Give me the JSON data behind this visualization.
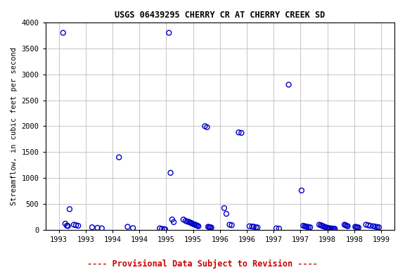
{
  "title": "USGS 06439295 CHERRY CR AT CHERRY CREEK SD",
  "ylabel": "Streamflow, in cubic feet per second",
  "xlim": [
    1992.75,
    1999.25
  ],
  "ylim": [
    0,
    4000
  ],
  "yticks": [
    0,
    500,
    1000,
    1500,
    2000,
    2500,
    3000,
    3500,
    4000
  ],
  "xticks": [
    1993,
    1993.5,
    1994,
    1994.5,
    1995,
    1995.5,
    1996,
    1996.5,
    1997,
    1997.5,
    1998,
    1998.5,
    1999
  ],
  "xticklabels": [
    "1993",
    "1993",
    "1994",
    "1994",
    "1995",
    "1995",
    "1996",
    "1996",
    "1997",
    "1997",
    "1998",
    "1998",
    "1999"
  ],
  "footnote": "---- Provisional Data Subject to Revision ----",
  "footnote_color": "#cc0000",
  "marker_color": "#0000cc",
  "background_color": "#ffffff",
  "grid_color": "#bbbbbb",
  "data_x": [
    1993.08,
    1993.12,
    1993.15,
    1993.17,
    1993.2,
    1993.28,
    1993.32,
    1993.36,
    1993.62,
    1993.72,
    1993.8,
    1994.12,
    1994.28,
    1994.38,
    1994.88,
    1994.92,
    1994.96,
    1994.98,
    1995.05,
    1995.08,
    1995.11,
    1995.14,
    1995.32,
    1995.36,
    1995.39,
    1995.42,
    1995.44,
    1995.46,
    1995.48,
    1995.5,
    1995.52,
    1995.54,
    1995.56,
    1995.58,
    1995.6,
    1995.72,
    1995.76,
    1995.78,
    1995.8,
    1995.82,
    1995.84,
    1996.08,
    1996.12,
    1996.18,
    1996.22,
    1996.35,
    1996.4,
    1996.55,
    1996.6,
    1996.63,
    1996.67,
    1996.7,
    1997.05,
    1997.1,
    1997.28,
    1997.52,
    1997.55,
    1997.58,
    1997.6,
    1997.62,
    1997.65,
    1997.68,
    1997.85,
    1997.88,
    1997.9,
    1997.92,
    1997.95,
    1997.97,
    1998.0,
    1998.02,
    1998.04,
    1998.06,
    1998.08,
    1998.1,
    1998.12,
    1998.14,
    1998.32,
    1998.34,
    1998.36,
    1998.38,
    1998.52,
    1998.54,
    1998.56,
    1998.58,
    1998.72,
    1998.76,
    1998.8,
    1998.86,
    1998.9,
    1998.93,
    1998.96
  ],
  "data_y": [
    3800,
    120,
    80,
    75,
    400,
    100,
    90,
    80,
    50,
    40,
    30,
    1400,
    60,
    35,
    30,
    20,
    15,
    10,
    3800,
    1100,
    200,
    150,
    200,
    175,
    160,
    155,
    145,
    135,
    125,
    115,
    105,
    100,
    90,
    80,
    70,
    2000,
    1980,
    60,
    55,
    50,
    45,
    420,
    310,
    100,
    90,
    1880,
    1870,
    70,
    65,
    60,
    50,
    45,
    30,
    25,
    2800,
    760,
    80,
    70,
    65,
    60,
    55,
    50,
    100,
    90,
    80,
    70,
    60,
    50,
    40,
    35,
    30,
    28,
    26,
    24,
    22,
    20,
    100,
    90,
    80,
    70,
    60,
    55,
    50,
    45,
    100,
    90,
    80,
    70,
    60,
    55,
    50
  ]
}
